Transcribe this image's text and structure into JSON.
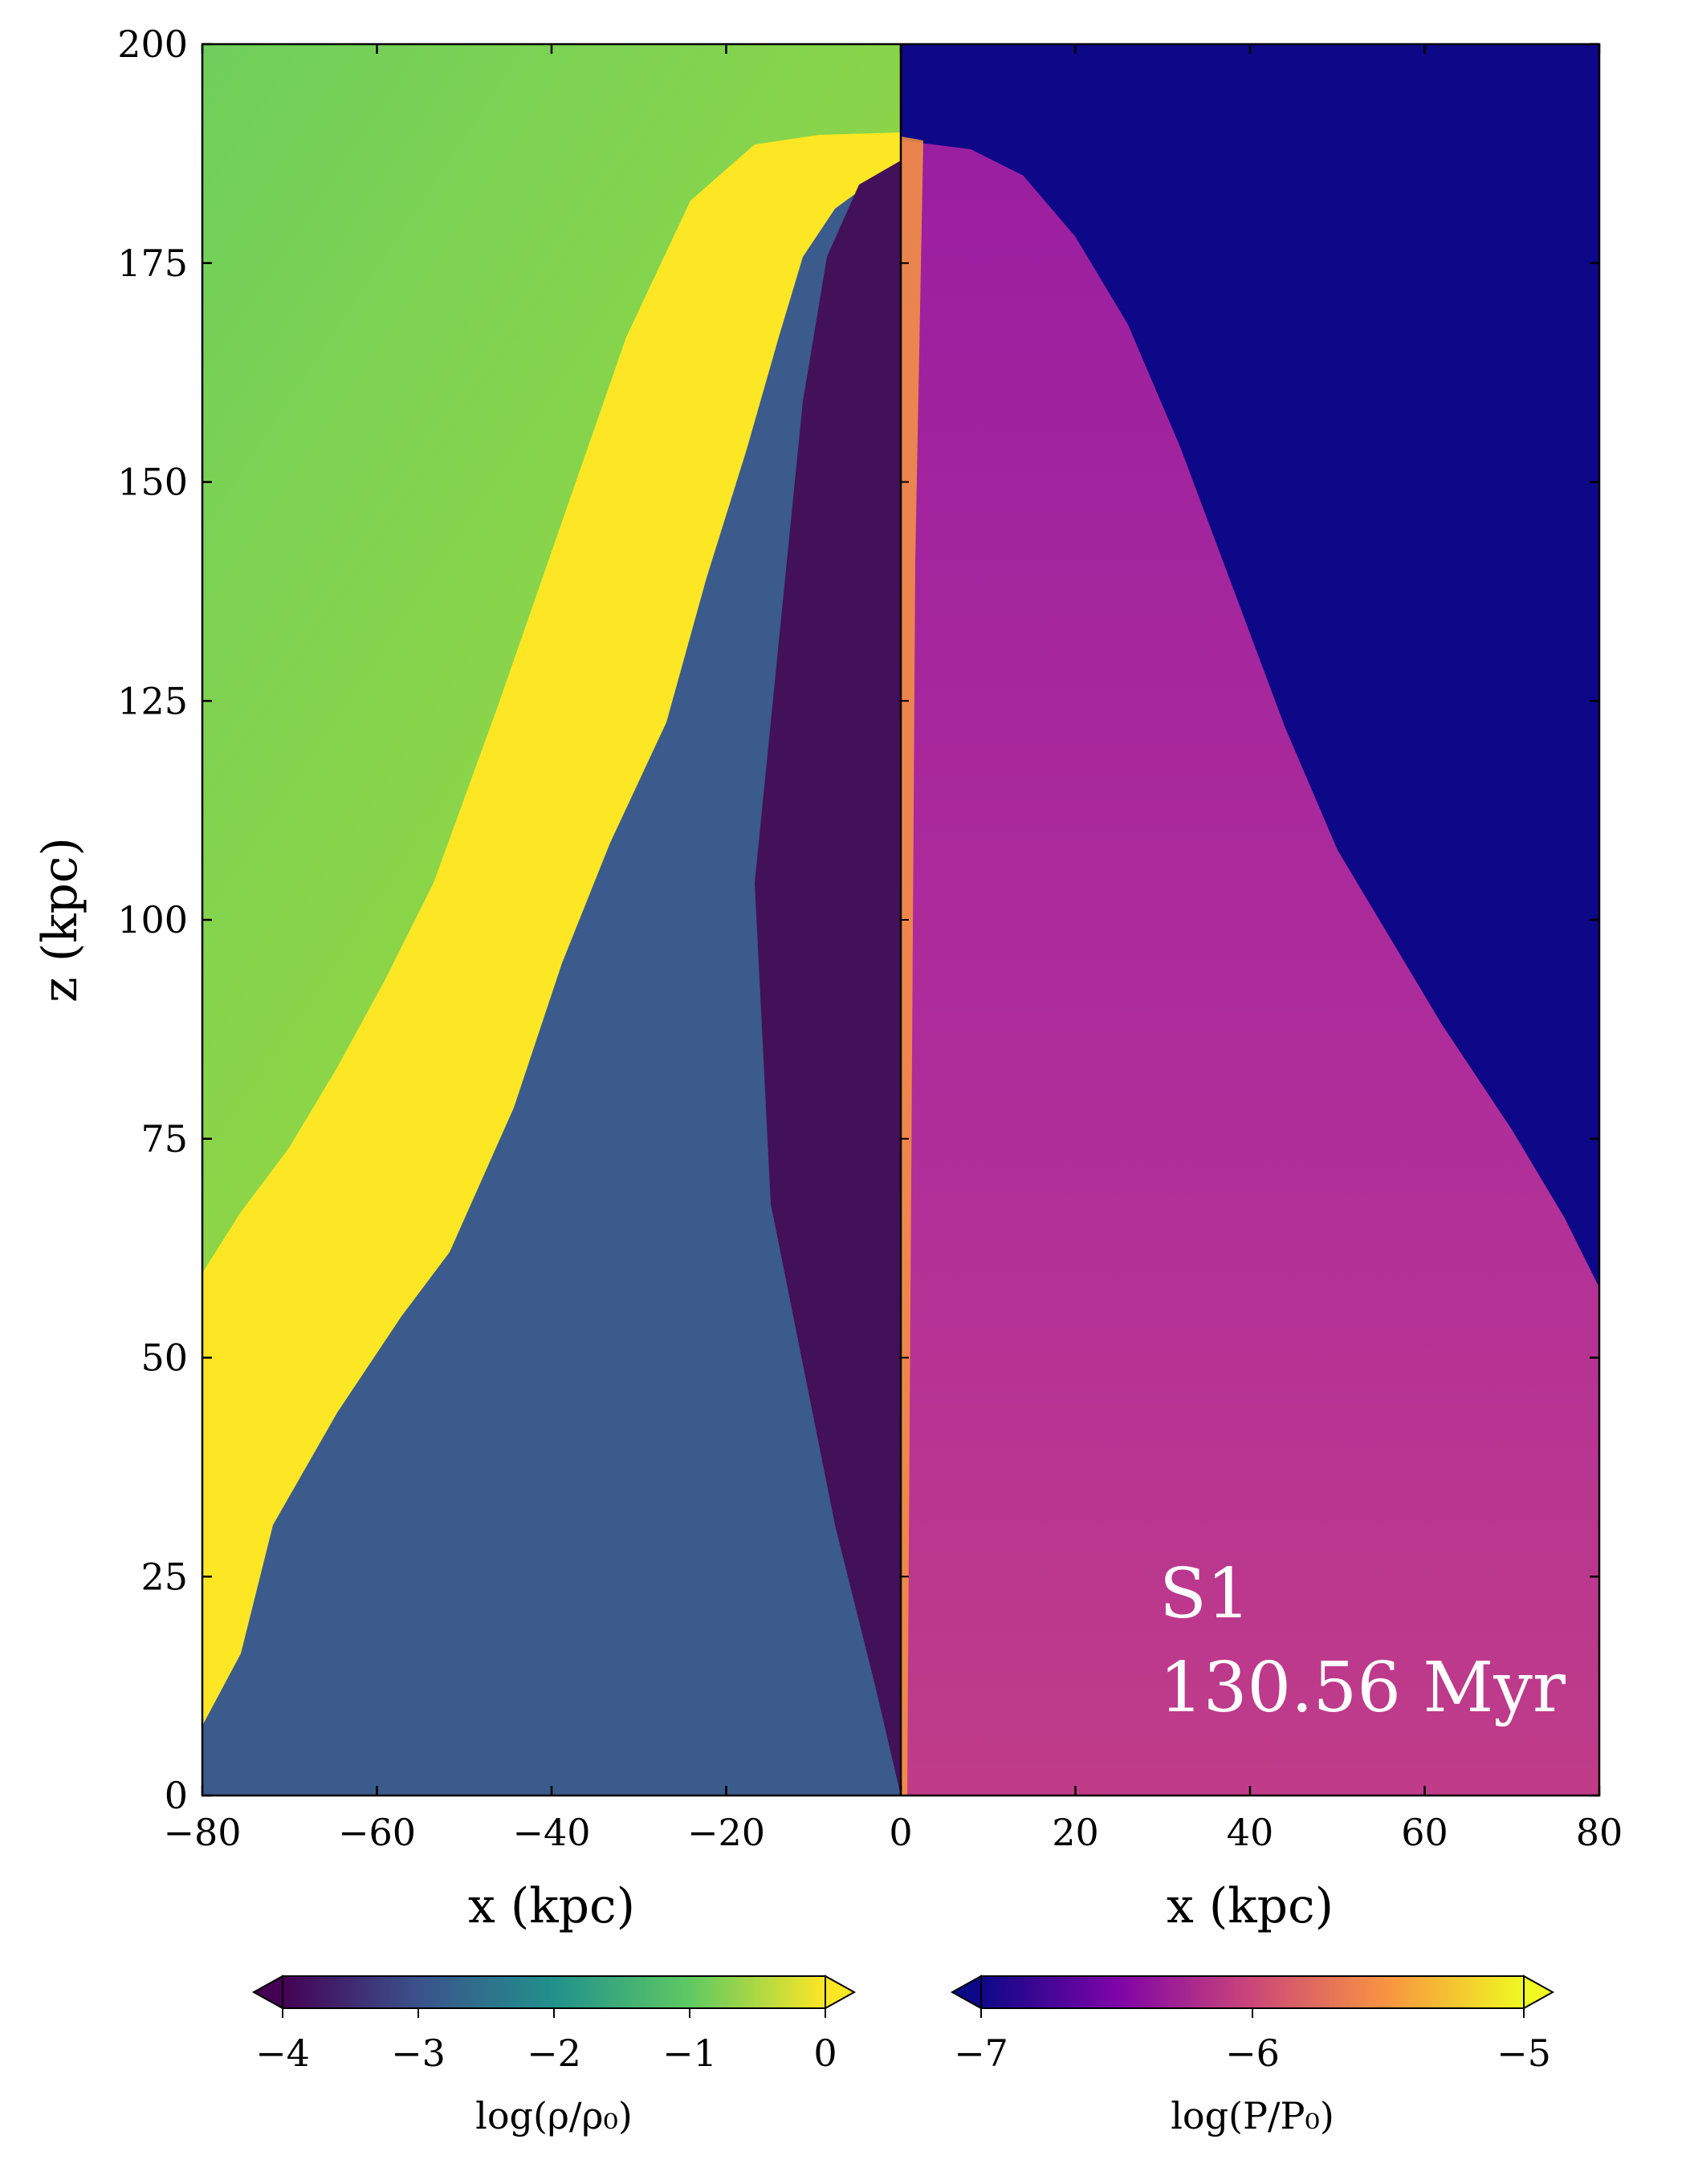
{
  "chart_data": {
    "type": "heatmap",
    "panels": [
      {
        "name": "density",
        "xlim": [
          -80,
          0
        ],
        "colormap": "viridis",
        "colorbar": {
          "label": "log(ρ/ρ₀)",
          "range": [
            -4,
            0
          ],
          "ticks": [
            -4,
            -3,
            -2,
            -1,
            0
          ],
          "tick_labels": [
            "−4",
            "−3",
            "−2",
            "−1",
            "0"
          ],
          "extend": "both"
        },
        "ambient_log_value": -0.4,
        "shell_log_value": 0.0,
        "cavity_log_value": -3.5
      },
      {
        "name": "pressure",
        "xlim": [
          0,
          80
        ],
        "colormap": "plasma",
        "colorbar": {
          "label": "log(P/P₀)",
          "range": [
            -7,
            -5
          ],
          "ticks": [
            -7,
            -6,
            -5
          ],
          "tick_labels": [
            "−7",
            "−6",
            "−5"
          ],
          "extend": "both"
        },
        "ambient_log_value": -7.0,
        "cocoon_log_value": -6.0
      }
    ],
    "x_ticks": [
      -80,
      -60,
      -40,
      -20,
      0,
      20,
      40,
      60,
      80
    ],
    "x_tick_labels": [
      "−80",
      "−60",
      "−40",
      "−20",
      "0",
      "20",
      "40",
      "60",
      "80"
    ],
    "y_ticks": [
      0,
      25,
      50,
      75,
      100,
      125,
      150,
      175,
      200
    ],
    "y_tick_labels": [
      "0",
      "25",
      "50",
      "75",
      "100",
      "125",
      "150",
      "175",
      "200"
    ],
    "ylim": [
      0,
      200
    ],
    "xlabel": "x (kpc)",
    "ylabel": "z (kpc)",
    "cocoon_outline": [
      [
        0,
        0
      ],
      [
        80,
        0
      ],
      [
        80,
        58
      ],
      [
        76,
        66
      ],
      [
        70,
        76
      ],
      [
        62,
        88
      ],
      [
        56,
        98
      ],
      [
        50,
        108
      ],
      [
        44,
        122
      ],
      [
        38,
        138
      ],
      [
        32,
        154
      ],
      [
        26,
        168
      ],
      [
        20,
        178
      ],
      [
        14,
        185
      ],
      [
        8,
        188
      ],
      [
        0,
        189
      ]
    ],
    "annotation": {
      "line1": "S1",
      "line2": "130.56 Myr"
    }
  },
  "colors": {
    "viridis": [
      "#440154",
      "#3b528b",
      "#21918c",
      "#5ec962",
      "#fde725"
    ],
    "plasma": [
      "#0d0887",
      "#7e03a8",
      "#cc4778",
      "#f89540",
      "#f0f921"
    ],
    "density_ambient": "#72ca5a",
    "density_shell": "#fde725",
    "density_cavity": "#43105a",
    "density_cocoon": "#3a5b8c",
    "pressure_ambient": "#0d0887",
    "pressure_cocoon": "#b32f9a"
  }
}
